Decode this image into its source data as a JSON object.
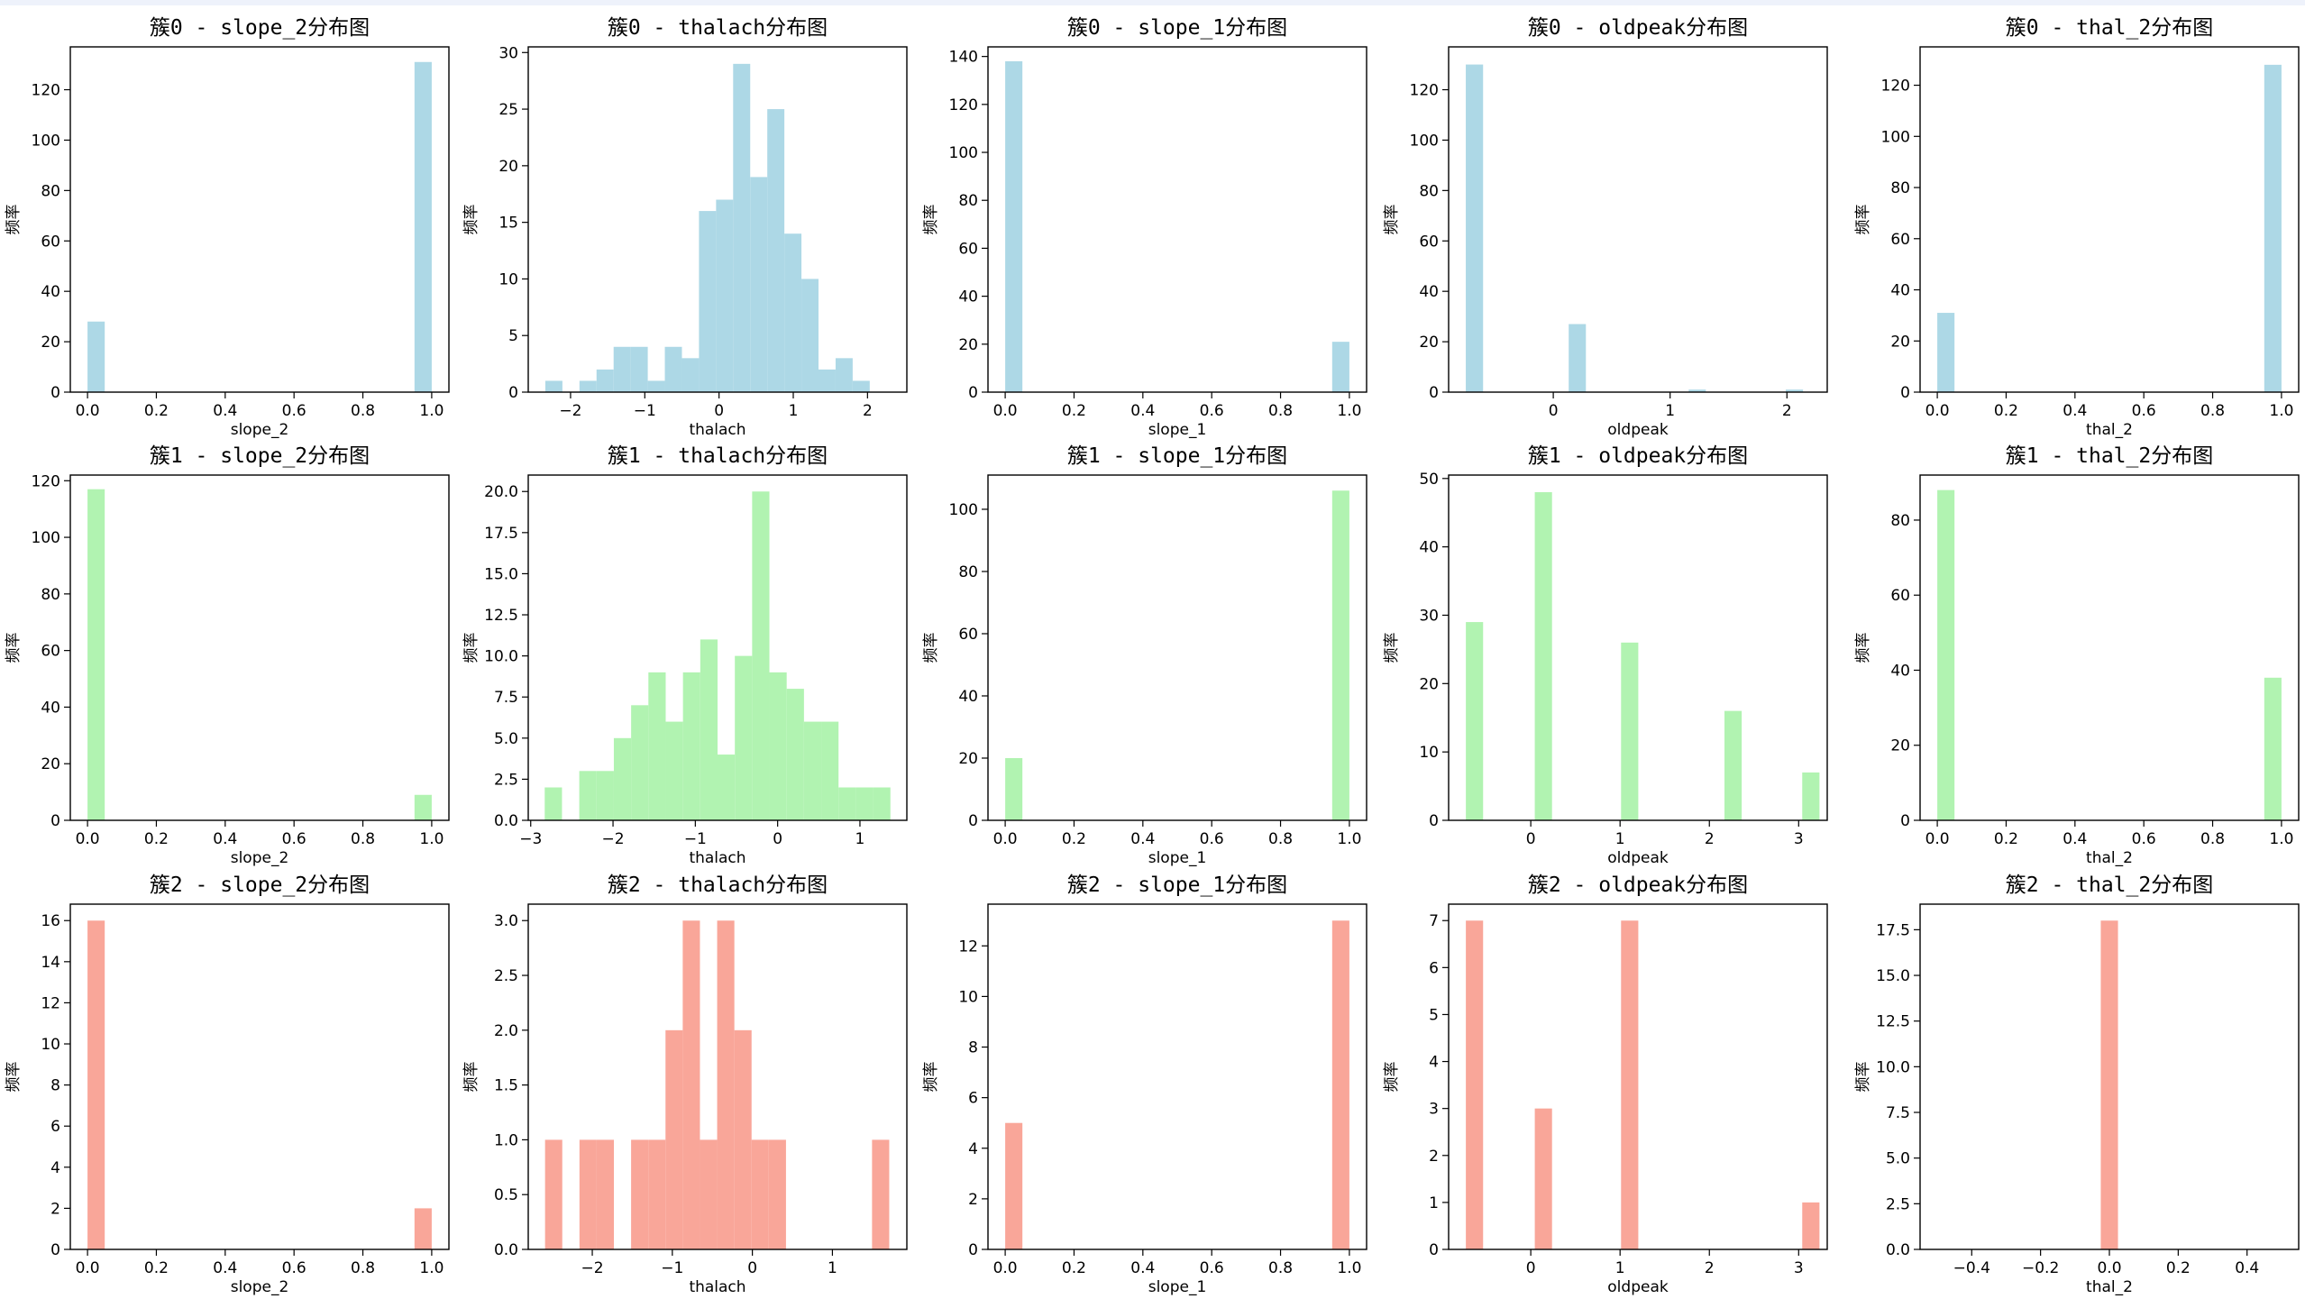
{
  "figure": {
    "colors": [
      "#add8e6",
      "#b1f3b1",
      "#f9a699"
    ],
    "ylabel": "频率"
  },
  "chart_data": [
    {
      "type": "bar",
      "title": "簇0 - slope_2分布图",
      "xlabel": "slope_2",
      "ylabel": "频率",
      "xlim": [
        -0.05,
        1.05
      ],
      "ylim": [
        0,
        137
      ],
      "xticks": [
        0,
        0.2,
        0.4,
        0.6,
        0.8,
        1.0
      ],
      "xtick_labels": [
        "0.0",
        "0.2",
        "0.4",
        "0.6",
        "0.8",
        "1.0"
      ],
      "yticks": [
        0,
        20,
        40,
        60,
        80,
        100,
        120
      ],
      "ytick_labels": [
        "0",
        "20",
        "40",
        "60",
        "80",
        "100",
        "120"
      ],
      "bins": [
        [
          0,
          0.05,
          28
        ],
        [
          0.95,
          1.0,
          131
        ]
      ]
    },
    {
      "type": "bar",
      "title": "簇0 - thalach分布图",
      "xlabel": "thalach",
      "ylabel": "频率",
      "xlim": [
        -2.57,
        2.53
      ],
      "ylim": [
        0,
        30.5
      ],
      "xticks": [
        -2,
        -1,
        0,
        1,
        2
      ],
      "xtick_labels": [
        "−2",
        "−1",
        "0",
        "1",
        "2"
      ],
      "yticks": [
        0,
        5,
        10,
        15,
        20,
        25,
        30
      ],
      "ytick_labels": [
        "0",
        "5",
        "10",
        "15",
        "20",
        "25",
        "30"
      ],
      "bins": [
        [
          -2.34,
          -2.11,
          1
        ],
        [
          -2.11,
          -1.88,
          0
        ],
        [
          -1.88,
          -1.65,
          1
        ],
        [
          -1.65,
          -1.42,
          2
        ],
        [
          -1.42,
          -1.19,
          4
        ],
        [
          -1.19,
          -0.96,
          4
        ],
        [
          -0.96,
          -0.73,
          1
        ],
        [
          -0.73,
          -0.5,
          4
        ],
        [
          -0.5,
          -0.27,
          3
        ],
        [
          -0.27,
          -0.04,
          16
        ],
        [
          -0.04,
          0.19,
          17
        ],
        [
          0.19,
          0.42,
          29
        ],
        [
          0.42,
          0.65,
          19
        ],
        [
          0.65,
          0.88,
          25
        ],
        [
          0.88,
          1.11,
          14
        ],
        [
          1.11,
          1.34,
          10
        ],
        [
          1.34,
          1.57,
          2
        ],
        [
          1.57,
          1.8,
          3
        ],
        [
          1.8,
          2.03,
          1
        ]
      ]
    },
    {
      "type": "bar",
      "title": "簇0 - slope_1分布图",
      "xlabel": "slope_1",
      "ylabel": "频率",
      "xlim": [
        -0.05,
        1.05
      ],
      "ylim": [
        0,
        144
      ],
      "xticks": [
        0,
        0.2,
        0.4,
        0.6,
        0.8,
        1.0
      ],
      "xtick_labels": [
        "0.0",
        "0.2",
        "0.4",
        "0.6",
        "0.8",
        "1.0"
      ],
      "yticks": [
        0,
        20,
        40,
        60,
        80,
        100,
        120,
        140
      ],
      "ytick_labels": [
        "0",
        "20",
        "40",
        "60",
        "80",
        "100",
        "120",
        "140"
      ],
      "bins": [
        [
          0,
          0.05,
          138
        ],
        [
          0.95,
          1.0,
          21
        ]
      ]
    },
    {
      "type": "bar",
      "title": "簇0 - oldpeak分布图",
      "xlabel": "oldpeak",
      "ylabel": "频率",
      "xlim": [
        -0.896,
        2.345
      ],
      "ylim": [
        0,
        137
      ],
      "xticks": [
        0,
        1,
        2
      ],
      "xtick_labels": [
        "0",
        "1",
        "2"
      ],
      "yticks": [
        0,
        20,
        40,
        60,
        80,
        100,
        120
      ],
      "ytick_labels": [
        "0",
        "20",
        "40",
        "60",
        "80",
        "100",
        "120"
      ],
      "bins": [
        [
          -0.749,
          -0.601,
          130
        ],
        [
          0.132,
          0.279,
          27
        ],
        [
          1.159,
          1.306,
          1
        ],
        [
          1.99,
          2.138,
          1
        ]
      ]
    },
    {
      "type": "bar",
      "title": "簇0 - thal_2分布图",
      "xlabel": "thal_2",
      "ylabel": "频率",
      "xlim": [
        -0.05,
        1.05
      ],
      "ylim": [
        0,
        135
      ],
      "xticks": [
        0,
        0.2,
        0.4,
        0.6,
        0.8,
        1.0
      ],
      "xtick_labels": [
        "0.0",
        "0.2",
        "0.4",
        "0.6",
        "0.8",
        "1.0"
      ],
      "yticks": [
        0,
        20,
        40,
        60,
        80,
        100,
        120
      ],
      "ytick_labels": [
        "0",
        "20",
        "40",
        "60",
        "80",
        "100",
        "120"
      ],
      "bins": [
        [
          0,
          0.05,
          31
        ],
        [
          0.95,
          1.0,
          128
        ]
      ]
    },
    {
      "type": "bar",
      "title": "簇1 - slope_2分布图",
      "xlabel": "slope_2",
      "ylabel": "频率",
      "xlim": [
        -0.05,
        1.05
      ],
      "ylim": [
        0,
        122
      ],
      "xticks": [
        0,
        0.2,
        0.4,
        0.6,
        0.8,
        1.0
      ],
      "xtick_labels": [
        "0.0",
        "0.2",
        "0.4",
        "0.6",
        "0.8",
        "1.0"
      ],
      "yticks": [
        0,
        20,
        40,
        60,
        80,
        100,
        120
      ],
      "ytick_labels": [
        "0",
        "20",
        "40",
        "60",
        "80",
        "100",
        "120"
      ],
      "bins": [
        [
          0,
          0.05,
          117
        ],
        [
          0.95,
          1.0,
          9
        ]
      ]
    },
    {
      "type": "bar",
      "title": "簇1 - thalach分布图",
      "xlabel": "thalach",
      "ylabel": "频率",
      "xlim": [
        -3.03,
        1.57
      ],
      "ylim": [
        0,
        21
      ],
      "xticks": [
        -3,
        -2,
        -1,
        0,
        1
      ],
      "xtick_labels": [
        "−3",
        "−2",
        "−1",
        "0",
        "1"
      ],
      "yticks": [
        0,
        2.5,
        5,
        7.5,
        10,
        12.5,
        15,
        17.5,
        20
      ],
      "ytick_labels": [
        "0.0",
        "2.5",
        "5.0",
        "7.5",
        "10.0",
        "12.5",
        "15.0",
        "17.5",
        "20.0"
      ],
      "bins": [
        [
          -2.83,
          -2.62,
          2
        ],
        [
          -2.62,
          -2.41,
          0
        ],
        [
          -2.41,
          -2.2,
          3
        ],
        [
          -2.2,
          -1.99,
          3
        ],
        [
          -1.99,
          -1.78,
          5
        ],
        [
          -1.78,
          -1.57,
          7
        ],
        [
          -1.57,
          -1.36,
          9
        ],
        [
          -1.36,
          -1.15,
          6
        ],
        [
          -1.15,
          -0.94,
          9
        ],
        [
          -0.94,
          -0.73,
          11
        ],
        [
          -0.73,
          -0.52,
          4
        ],
        [
          -0.52,
          -0.31,
          10
        ],
        [
          -0.31,
          -0.1,
          20
        ],
        [
          -0.1,
          0.11,
          9
        ],
        [
          0.11,
          0.32,
          8
        ],
        [
          0.32,
          0.53,
          6
        ],
        [
          0.53,
          0.74,
          6
        ],
        [
          0.74,
          0.95,
          2
        ],
        [
          0.95,
          1.16,
          2
        ],
        [
          1.16,
          1.37,
          2
        ]
      ]
    },
    {
      "type": "bar",
      "title": "簇1 - slope_1分布图",
      "xlabel": "slope_1",
      "ylabel": "频率",
      "xlim": [
        -0.05,
        1.05
      ],
      "ylim": [
        0,
        111
      ],
      "xticks": [
        0,
        0.2,
        0.4,
        0.6,
        0.8,
        1.0
      ],
      "xtick_labels": [
        "0.0",
        "0.2",
        "0.4",
        "0.6",
        "0.8",
        "1.0"
      ],
      "yticks": [
        0,
        20,
        40,
        60,
        80,
        100
      ],
      "ytick_labels": [
        "0",
        "20",
        "40",
        "60",
        "80",
        "100"
      ],
      "bins": [
        [
          0,
          0.05,
          20
        ],
        [
          0.95,
          1.0,
          106
        ]
      ]
    },
    {
      "type": "bar",
      "title": "簇1 - oldpeak分布图",
      "xlabel": "oldpeak",
      "ylabel": "频率",
      "xlim": [
        -0.92,
        3.32
      ],
      "ylim": [
        0,
        50.5
      ],
      "xticks": [
        0,
        1,
        2,
        3
      ],
      "xtick_labels": [
        "0",
        "1",
        "2",
        "3"
      ],
      "yticks": [
        0,
        10,
        20,
        30,
        40,
        50
      ],
      "ytick_labels": [
        "0",
        "10",
        "20",
        "30",
        "40",
        "50"
      ],
      "bins": [
        [
          -0.727,
          -0.534,
          29
        ],
        [
          0.045,
          0.238,
          48
        ],
        [
          1.011,
          1.204,
          26
        ],
        [
          2.169,
          2.362,
          16
        ],
        [
          3.04,
          3.233,
          7
        ]
      ]
    },
    {
      "type": "bar",
      "title": "簇1 - thal_2分布图",
      "xlabel": "thal_2",
      "ylabel": "频率",
      "xlim": [
        -0.05,
        1.05
      ],
      "ylim": [
        0,
        92
      ],
      "xticks": [
        0,
        0.2,
        0.4,
        0.6,
        0.8,
        1.0
      ],
      "xtick_labels": [
        "0.0",
        "0.2",
        "0.4",
        "0.6",
        "0.8",
        "1.0"
      ],
      "yticks": [
        0,
        20,
        40,
        60,
        80
      ],
      "ytick_labels": [
        "0",
        "20",
        "40",
        "60",
        "80"
      ],
      "bins": [
        [
          0,
          0.05,
          88
        ],
        [
          0.95,
          1.0,
          38
        ]
      ]
    },
    {
      "type": "bar",
      "title": "簇2 - slope_2分布图",
      "xlabel": "slope_2",
      "ylabel": "频率",
      "xlim": [
        -0.05,
        1.05
      ],
      "ylim": [
        0,
        16.8
      ],
      "xticks": [
        0,
        0.2,
        0.4,
        0.6,
        0.8,
        1.0
      ],
      "xtick_labels": [
        "0.0",
        "0.2",
        "0.4",
        "0.6",
        "0.8",
        "1.0"
      ],
      "yticks": [
        0,
        2,
        4,
        6,
        8,
        10,
        12,
        14,
        16
      ],
      "ytick_labels": [
        "0",
        "2",
        "4",
        "6",
        "8",
        "10",
        "12",
        "14",
        "16"
      ],
      "bins": [
        [
          0,
          0.05,
          16
        ],
        [
          0.95,
          1.0,
          2
        ]
      ]
    },
    {
      "type": "bar",
      "title": "簇2 - thalach分布图",
      "xlabel": "thalach",
      "ylabel": "频率",
      "xlim": [
        -2.8,
        1.93
      ],
      "ylim": [
        0,
        3.15
      ],
      "xticks": [
        -2,
        -1,
        0,
        1
      ],
      "xtick_labels": [
        "−2",
        "−1",
        "0",
        "1"
      ],
      "yticks": [
        0,
        0.5,
        1,
        1.5,
        2,
        2.5,
        3
      ],
      "ytick_labels": [
        "0.0",
        "0.5",
        "1.0",
        "1.5",
        "2.0",
        "2.5",
        "3.0"
      ],
      "bins": [
        [
          -2.59,
          -2.375,
          1
        ],
        [
          -2.375,
          -2.16,
          0
        ],
        [
          -2.16,
          -1.945,
          1
        ],
        [
          -1.945,
          -1.73,
          1
        ],
        [
          -1.73,
          -1.515,
          0
        ],
        [
          -1.515,
          -1.3,
          1
        ],
        [
          -1.3,
          -1.085,
          1
        ],
        [
          -1.085,
          -0.87,
          2
        ],
        [
          -0.87,
          -0.655,
          3
        ],
        [
          -0.655,
          -0.44,
          1
        ],
        [
          -0.44,
          -0.225,
          3
        ],
        [
          -0.225,
          -0.01,
          2
        ],
        [
          -0.01,
          0.205,
          1
        ],
        [
          0.205,
          0.42,
          1
        ],
        [
          0.42,
          0.635,
          0
        ],
        [
          0.635,
          0.85,
          0
        ],
        [
          0.85,
          1.065,
          0
        ],
        [
          1.065,
          1.28,
          0
        ],
        [
          1.28,
          1.495,
          0
        ],
        [
          1.495,
          1.71,
          1
        ]
      ]
    },
    {
      "type": "bar",
      "title": "簇2 - slope_1分布图",
      "xlabel": "slope_1",
      "ylabel": "频率",
      "xlim": [
        -0.05,
        1.05
      ],
      "ylim": [
        0,
        13.65
      ],
      "xticks": [
        0,
        0.2,
        0.4,
        0.6,
        0.8,
        1.0
      ],
      "xtick_labels": [
        "0.0",
        "0.2",
        "0.4",
        "0.6",
        "0.8",
        "1.0"
      ],
      "yticks": [
        0,
        2,
        4,
        6,
        8,
        10,
        12
      ],
      "ytick_labels": [
        "0",
        "2",
        "4",
        "6",
        "8",
        "10",
        "12"
      ],
      "bins": [
        [
          0,
          0.05,
          5
        ],
        [
          0.95,
          1.0,
          13
        ]
      ]
    },
    {
      "type": "bar",
      "title": "簇2 - oldpeak分布图",
      "xlabel": "oldpeak",
      "ylabel": "频率",
      "xlim": [
        -0.92,
        3.32
      ],
      "ylim": [
        0,
        7.35
      ],
      "xticks": [
        0,
        1,
        2,
        3
      ],
      "xtick_labels": [
        "0",
        "1",
        "2",
        "3"
      ],
      "yticks": [
        0,
        1,
        2,
        3,
        4,
        5,
        6,
        7
      ],
      "ytick_labels": [
        "0",
        "1",
        "2",
        "3",
        "4",
        "5",
        "6",
        "7"
      ],
      "bins": [
        [
          -0.727,
          -0.534,
          7
        ],
        [
          0.045,
          0.238,
          3
        ],
        [
          1.011,
          1.204,
          7
        ],
        [
          3.04,
          3.233,
          1
        ]
      ]
    },
    {
      "type": "bar",
      "title": "簇2 - thal_2分布图",
      "xlabel": "thal_2",
      "ylabel": "频率",
      "xlim": [
        -0.55,
        0.55
      ],
      "ylim": [
        0,
        18.9
      ],
      "xticks": [
        -0.4,
        -0.2,
        0,
        0.2,
        0.4
      ],
      "xtick_labels": [
        "−0.4",
        "−0.2",
        "0.0",
        "0.2",
        "0.4"
      ],
      "yticks": [
        0,
        2.5,
        5,
        7.5,
        10,
        12.5,
        15,
        17.5
      ],
      "ytick_labels": [
        "0.0",
        "2.5",
        "5.0",
        "7.5",
        "10.0",
        "12.5",
        "15.0",
        "17.5"
      ],
      "bins": [
        [
          -0.025,
          0.025,
          18
        ]
      ]
    }
  ]
}
